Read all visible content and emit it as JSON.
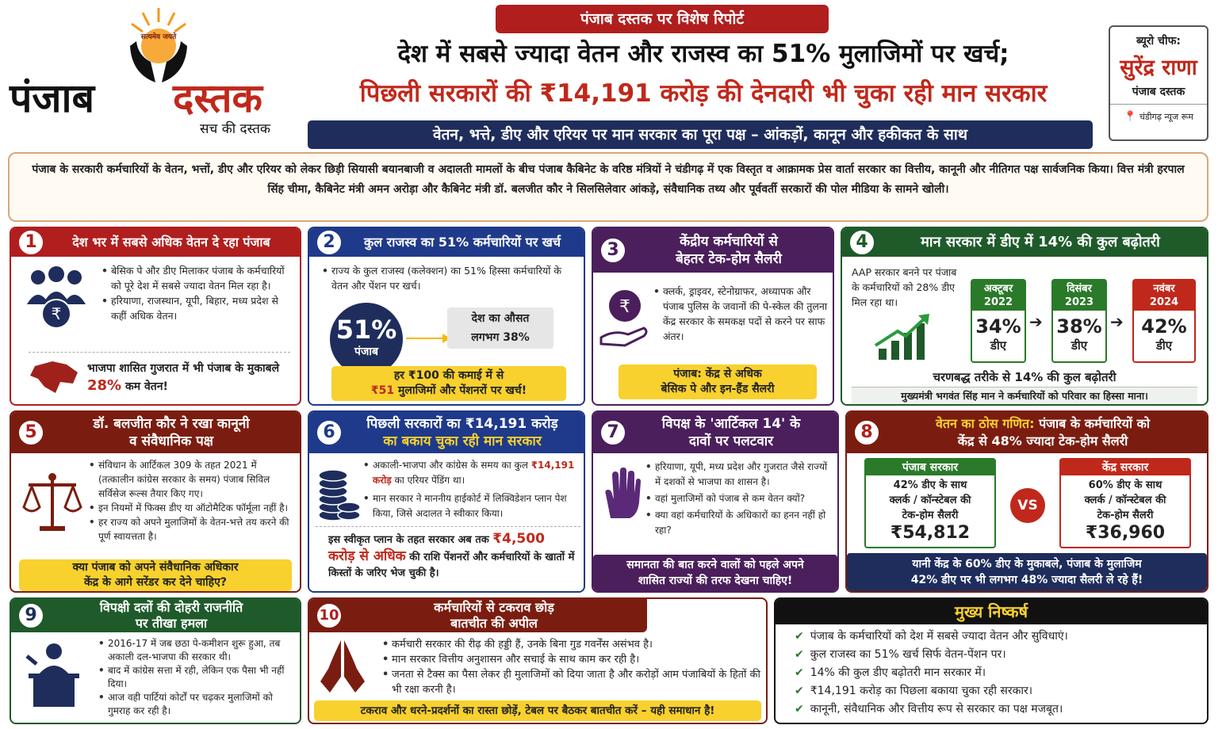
{
  "logo": {
    "motto": "सत्यमेव जयते",
    "name_part1": "पंजाब",
    "name_part2": "दस्तक",
    "tagline": "सच की दस्तक"
  },
  "ribbon": "पंजाब दस्तक पर विशेष रिपोर्ट",
  "headline": {
    "line1": "देश में सबसे ज्यादा वेतन और राजस्व का 51% मुलाजिमों पर खर्च;",
    "line2": "पिछली सरकारों की ₹14,191 करोड़ की देनदारी भी चुका रही मान सरकार",
    "subbar": "वेतन, भत्ते, डीए और एरियर पर मान सरकार का पूरा पक्ष – आंकड़ों, कानून और हकीकत के साथ"
  },
  "bureau": {
    "title": "ब्यूरो चीफ:",
    "name": "सुरेंद्र राणा",
    "org": "पंजाब दस्तक",
    "location": "चंडीगढ़ न्यूज रूम"
  },
  "intro": "पंजाब के सरकारी कर्मचारियों के वेतन, भत्तों, डीए और एरियर को लेकर छिड़ी सियासी बयानबाजी व अदालती मामलों के बीच पंजाब कैबिनेट के वरिष्ठ मंत्रियों ने चंडीगढ़ में एक विस्तृत व आक्रामक प्रेस वार्ता सरकार का वित्तीय, कानूनी और नीतिगत पक्ष सार्वजनिक किया। वित्त मंत्री हरपाल सिंह चीमा, कैबिनेट मंत्री अमन अरोड़ा और कैबिनेट मंत्री डॉ. बलजीत कौर ने सिलसिलेवार आंकड़े, संवैधानिक तथ्य और पूर्ववर्ती सरकारों की पोल मीडिया के सामने खोली।",
  "cards": {
    "c1": {
      "num": "1",
      "title": "देश भर में सबसे अधिक वेतन दे रहा पंजाब",
      "bullets": [
        "बेसिक पे और डीए मिलाकर पंजाब के कर्मचारियों को पूरे देश में सबसे ज्यादा वेतन मिल रहा है।",
        "हरियाणा, राजस्थान, यूपी, बिहार, मध्य प्रदेश से कहीं अधिक वेतन।"
      ],
      "note_pre": "भाजपा शासित गुजरात में भी पंजाब के मुकाबले",
      "note_pct": "28%",
      "note_post": "कम वेतन!"
    },
    "c2": {
      "num": "2",
      "title": "कुल राजस्व का 51% कर्मचारियों पर खर्च",
      "bullet": "राज्य के कुल राजस्व (कलेक्शन) का 51% हिस्सा कर्मचारियों के वेतन और पेंशन पर खर्च।",
      "big_pct": "51%",
      "big_label": "पंजाब",
      "avg_line1": "देश का औसत",
      "avg_line2": "लगभग 38%",
      "y_line1": "हर ₹100 की कमाई में से",
      "y_amt": "₹51",
      "y_line2": "मुलाजिमों और पेंशनरों पर खर्च!"
    },
    "c3": {
      "num": "3",
      "title_l1": "केंद्रीय कर्मचारियों से",
      "title_l2": "बेहतर टेक-होम सैलरी",
      "bullet": "क्लर्क, ड्राइवर, स्टेनोग्राफर, अध्यापक और पंजाब पुलिस के जवानों की पे-स्केल की तुलना केंद्र सरकार के समकक्ष पदों से करने पर साफ अंतर।",
      "y_line1": "पंजाब: केंद्र से अधिक",
      "y_line2": "बेसिक पे और इन-हैंड सैलरी"
    },
    "c4": {
      "num": "4",
      "title": "मान सरकार में डीए में 14% की कुल बढ़ोतरी",
      "intro": "AAP सरकार बनने पर पंजाब के कर्मचारियों को 28% डीए मिल रहा था।",
      "steps": [
        {
          "date_l1": "अक्टूबर",
          "date_l2": "2022",
          "pct": "34%",
          "label": "डीए",
          "color": "#2a7a2a"
        },
        {
          "date_l1": "दिसंबर",
          "date_l2": "2023",
          "pct": "38%",
          "label": "डीए",
          "color": "#2a7a2a"
        },
        {
          "date_l1": "नवंबर",
          "date_l2": "2024",
          "pct": "42%",
          "label": "डीए",
          "color": "#c0281b"
        }
      ],
      "summary": "चरणबद्ध तरीके से 14% की कुल बढ़ोतरी",
      "footer": "मुख्यमंत्री भगवंत सिंह मान ने कर्मचारियों को परिवार का हिस्सा माना।"
    },
    "c5": {
      "num": "5",
      "title_l1": "डॉ. बलजीत कौर ने रखा कानूनी",
      "title_l2": "व संवैधानिक पक्ष",
      "bullets": [
        "संविधान के आर्टिकल 309 के तहत 2021 में (तत्कालीन कांग्रेस सरकार के समय) पंजाब सिविल सर्विसेज रूल्स तैयार किए गए।",
        "इन नियमों में फिक्स डीए या ऑटोमैटिक फॉर्मूला नहीं है।",
        "हर राज्य को अपने मुलाजिमों के वेतन-भत्ते तय करने की पूर्ण स्वायत्तता है।"
      ],
      "y_line1": "क्या पंजाब को अपने संवैधानिक अधिकार",
      "y_line2": "केंद्र के आगे सरेंडर कर देने चाहिए?"
    },
    "c6": {
      "num": "6",
      "title_l1": "पिछली सरकारों का ₹14,191 करोड़",
      "title_l2": "का बकाय चुका रही मान सरकार",
      "b1_pre": "अकाली-भाजपा और कांग्रेस के समय का कुल",
      "b1_amt": "₹14,191 करोड़",
      "b1_post": "का एरियर पेंडिंग था।",
      "b2": "मान सरकार ने माननीय हाईकोर्ट में लिक्विडेशन प्लान पेश किया, जिसे अदालत ने स्वीकार किया।",
      "note_pre": "इस स्वीकृत प्लान के तहत सरकार अब तक",
      "note_amt": "₹4,500 करोड़ से अधिक",
      "note_post": "की राशि पेंशनरों और कर्मचारियों के खातों में किस्तों के जरिए भेज चुकी है।"
    },
    "c7": {
      "num": "7",
      "title_l1": "विपक्ष के 'आर्टिकल 14' के",
      "title_l2": "दावों पर पलटवार",
      "bullets": [
        "हरियाणा, यूपी, मध्य प्रदेश और गुजरात जैसे राज्यों में दशकों से भाजपा का शासन है।",
        "वहां मुलाजिमों को पंजाब से कम वेतन क्यों?",
        "क्या वहां कर्मचारियों के अधिकारों का हनन नहीं हो रहा?"
      ],
      "d_line1": "समानता की बात करने वालों को पहले अपने",
      "d_line2": "शासित राज्यों की तरफ देखना चाहिए!"
    },
    "c8": {
      "num": "8",
      "title_hl": "वेतन का ठोस गणित:",
      "title_l1": "पंजाब के कर्मचारियों को",
      "title_l2": "केंद्र से 48% ज्यादा टेक-होम सैलरी",
      "left": {
        "head": "पंजाब सरकार",
        "l1": "42% डीए के साथ",
        "l2": "क्लर्क / कॉन्स्टेबल की",
        "l3": "टेक-होम सैलरी",
        "amt": "₹54,812"
      },
      "vs": "VS",
      "right": {
        "head": "केंद्र सरकार",
        "l1": "60% डीए के साथ",
        "l2": "क्लर्क / कॉन्स्टेबल की",
        "l3": "टेक-होम सैलरी",
        "amt": "₹36,960"
      },
      "footer_l1": "यानी केंद्र के 60% डीए के मुकाबले, पंजाब के मुलाजिम",
      "footer_l2": "42% डीए पर भी लगभग 48% ज्यादा सैलरी ले रहे हैं!"
    },
    "c9": {
      "num": "9",
      "title_l1": "विपक्षी दलों की दोहरी राजनीति",
      "title_l2": "पर तीखा हमला",
      "bullets": [
        "2016-17 में जब छठा पे-कमीशन शुरू हुआ, तब अकाली दल-भाजपा की सरकार थी।",
        "बाद में कांग्रेस सत्ता में रही, लेकिन एक पैसा भी नहीं दिया।",
        "आज वही पार्टियां कोर्टों पर चढ़कर मुलाजिमों को गुमराह कर रही है।"
      ]
    },
    "c10": {
      "num": "10",
      "title_l1": "कर्मचारियों से टकराव छोड़",
      "title_l2": "बातचीत की अपील",
      "bullets": [
        "कर्मचारी सरकार की रीढ़ की हड्डी हैं, उनके बिना गुड गवर्नेंस असंभव है।",
        "मान सरकार वित्तीय अनुशासन और सचाई के साथ काम कर रही है।",
        "जनता से टैक्स का पैसा लेकर ही मुलाजिमों को दिया जाता है और करोड़ों आम पंजाबियों के हितों की भी रक्षा करनी है।"
      ],
      "y_line": "टकराव और धरने-प्रदर्शनों का रास्ता छोड़ें, टेबल पर बैठकर बातचीत करें – यही समाधान है!"
    },
    "conclusion": {
      "title": "मुख्य निष्कर्ष",
      "items": [
        "पंजाब के कर्मचारियों को देश में सबसे ज्यादा वेतन और सुविधाएं।",
        "कुल राजस्व का 51% खर्च सिर्फ वेतन-पेंशन पर।",
        "14% की कुल डीए बढ़ोतरी मान सरकार में।",
        "₹14,191 करोड़ का पिछला बकाया चुका रही सरकार।",
        "कानूनी, संवैधानिक और वित्तीय रूप से सरकार का पक्ष मजबूत।"
      ]
    }
  },
  "colors": {
    "red": "#b01e1e",
    "blue": "#1f3a8a",
    "purple": "#4a1f5c",
    "green": "#1f5a2a",
    "navy": "#1f2d5c",
    "yellow": "#f8d12e"
  }
}
